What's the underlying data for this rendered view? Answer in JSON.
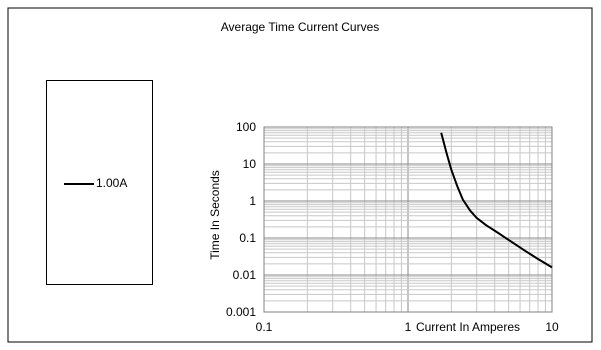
{
  "chart_data": {
    "type": "line",
    "title": "Average Time Current Curves",
    "xlabel": "Current In Amperes",
    "ylabel": "Time In Seconds",
    "x_scale": "log",
    "y_scale": "log",
    "xlim": [
      0.1,
      10
    ],
    "ylim": [
      0.001,
      100
    ],
    "x_tick_labels": [
      "0.1",
      "1",
      "10"
    ],
    "y_tick_labels": [
      "100",
      "10",
      "1",
      "0.1",
      "0.01",
      "0.001"
    ],
    "grid": true,
    "legend_position": "left",
    "series": [
      {
        "name": "1.00A",
        "color": "#000000",
        "x": [
          1.7,
          1.85,
          2.0,
          2.2,
          2.4,
          2.7,
          3.0,
          3.5,
          4.2,
          5.2,
          6.5,
          8.0,
          10.0
        ],
        "y": [
          70,
          20,
          7,
          2.5,
          1.1,
          0.55,
          0.35,
          0.22,
          0.14,
          0.08,
          0.045,
          0.027,
          0.016
        ]
      }
    ]
  }
}
